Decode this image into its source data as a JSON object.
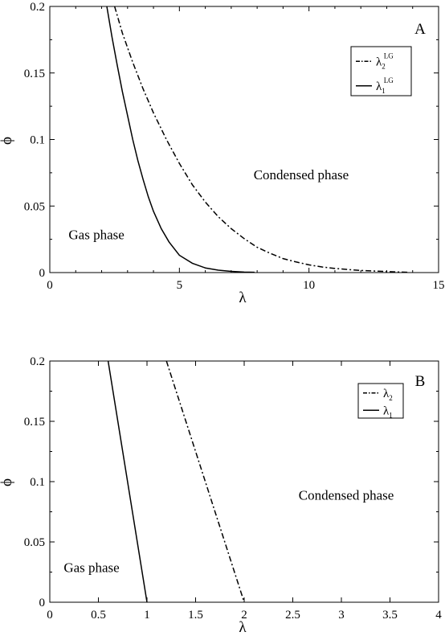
{
  "chart_data": [
    {
      "type": "line",
      "panel_label": "A",
      "xlabel": "λ",
      "ylabel": "ϕ",
      "xlim": [
        0,
        15
      ],
      "ylim": [
        0,
        0.2
      ],
      "xticks": [
        "0",
        "5",
        "10",
        "15"
      ],
      "yticks": [
        "0",
        "0.05",
        "0.1",
        "0.15",
        "0.2"
      ],
      "legend_position": "top-right",
      "annotations": [
        {
          "text": "Gas phase",
          "x": 1.8,
          "y": 0.025
        },
        {
          "text": "Condensed phase",
          "x": 9.7,
          "y": 0.07
        }
      ],
      "series": [
        {
          "name": "λ",
          "sub": "2",
          "sup": "LG",
          "style": "dashdot",
          "x": [
            2.5,
            2.8,
            3.2,
            3.6,
            4.0,
            4.5,
            5.0,
            5.5,
            6.0,
            6.5,
            7.0,
            7.5,
            8.0,
            8.5,
            9.0,
            9.5,
            10.0,
            10.5,
            11.0,
            11.5,
            12.0,
            12.5,
            13.0,
            13.5,
            13.8
          ],
          "y": [
            0.2,
            0.18,
            0.158,
            0.138,
            0.12,
            0.1,
            0.082,
            0.066,
            0.053,
            0.042,
            0.033,
            0.0255,
            0.019,
            0.0145,
            0.0105,
            0.008,
            0.0058,
            0.0042,
            0.0031,
            0.0023,
            0.0016,
            0.0012,
            0.0008,
            0.0004,
            0.0002
          ]
        },
        {
          "name": "λ",
          "sub": "1",
          "sup": "LG",
          "style": "solid",
          "x": [
            2.2,
            2.4,
            2.6,
            2.8,
            3.0,
            3.2,
            3.4,
            3.6,
            3.8,
            4.0,
            4.3,
            4.6,
            5.0,
            5.5,
            6.0,
            6.5,
            7.0,
            7.5,
            7.9
          ],
          "y": [
            0.2,
            0.177,
            0.156,
            0.136,
            0.118,
            0.1,
            0.084,
            0.07,
            0.057,
            0.046,
            0.033,
            0.023,
            0.013,
            0.007,
            0.0035,
            0.0018,
            0.0009,
            0.0004,
            0.0002
          ]
        }
      ]
    },
    {
      "type": "line",
      "panel_label": "B",
      "xlabel": "λ",
      "ylabel": "ϕ",
      "xlim": [
        0,
        4
      ],
      "ylim": [
        0,
        0.2
      ],
      "xticks": [
        "0",
        "0.5",
        "1",
        "1.5",
        "2",
        "2.5",
        "3",
        "3.5",
        "4"
      ],
      "yticks": [
        "0",
        "0.05",
        "0.1",
        "0.15",
        "0.2"
      ],
      "legend_position": "top-right",
      "annotations": [
        {
          "text": "Gas phase",
          "x": 0.43,
          "y": 0.025
        },
        {
          "text": "Condensed phase",
          "x": 3.05,
          "y": 0.085
        }
      ],
      "series": [
        {
          "name": "λ",
          "sub": "2",
          "sup": "",
          "style": "dashdot",
          "x": [
            1.2,
            2.0
          ],
          "y": [
            0.2,
            0.0
          ]
        },
        {
          "name": "λ",
          "sub": "1",
          "sup": "",
          "style": "solid",
          "x": [
            0.6,
            1.0
          ],
          "y": [
            0.2,
            0.0
          ]
        }
      ]
    }
  ]
}
